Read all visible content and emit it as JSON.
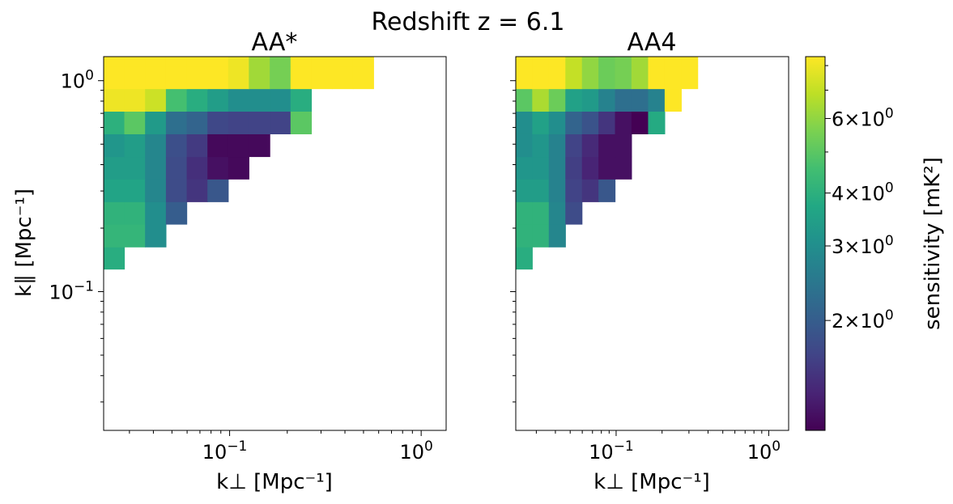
{
  "figure": {
    "suptitle": "Redshift z = 6.1",
    "colorbar": {
      "label": "sensitivity [mK²]",
      "scale": "log",
      "range": [
        1.1,
        8.4
      ],
      "colormap": "viridis",
      "ticks": [
        {
          "value": 6,
          "mant": "6",
          "exp": "0"
        },
        {
          "value": 4,
          "mant": "4",
          "exp": "0"
        },
        {
          "value": 3,
          "mant": "3",
          "exp": "0"
        },
        {
          "value": 2,
          "mant": "2",
          "exp": "0"
        }
      ]
    }
  },
  "chart_data": [
    {
      "type": "heatmap",
      "title": "AA*",
      "xlabel": "k⊥ [Mpc⁻¹]",
      "ylabel": "k∥ [Mpc⁻¹]",
      "xscale": "log",
      "yscale": "log",
      "xlim": [
        0.022,
        1.35
      ],
      "ylim": [
        0.022,
        1.3
      ],
      "xticks": [
        {
          "value": 0.1,
          "label": "10",
          "exp": "−1"
        },
        {
          "value": 1,
          "label": "10",
          "exp": "0"
        }
      ],
      "yticks": [
        {
          "value": 0.1,
          "label": "10",
          "exp": "−1"
        },
        {
          "value": 1,
          "label": "10",
          "exp": "0"
        }
      ],
      "x_edges": [
        0.022,
        0.0282,
        0.0362,
        0.0465,
        0.0597,
        0.0766,
        0.0983,
        0.126,
        0.162,
        0.208,
        0.267,
        0.342,
        0.44,
        0.564
      ],
      "y_edges": [
        0.128,
        0.163,
        0.209,
        0.267,
        0.342,
        0.437,
        0.56,
        0.717,
        0.917,
        1.174,
        1.3
      ],
      "values": [
        [
          3.9,
          null,
          null,
          null,
          null,
          null,
          null,
          null,
          null,
          null,
          null,
          null,
          null
        ],
        [
          4.2,
          4.2,
          3.0,
          null,
          null,
          null,
          null,
          null,
          null,
          null,
          null,
          null,
          null
        ],
        [
          4.1,
          4.1,
          3.0,
          2.0,
          null,
          null,
          null,
          null,
          null,
          null,
          null,
          null,
          null
        ],
        [
          3.6,
          3.6,
          2.8,
          1.75,
          1.5,
          1.9,
          null,
          null,
          null,
          null,
          null,
          null,
          null
        ],
        [
          3.4,
          3.4,
          2.8,
          1.75,
          1.45,
          1.2,
          1.15,
          null,
          null,
          null,
          null,
          null,
          null
        ],
        [
          3.2,
          3.4,
          2.8,
          1.8,
          1.55,
          1.15,
          1.15,
          1.15,
          null,
          null,
          null,
          null,
          null
        ],
        [
          4.0,
          5.0,
          3.3,
          2.3,
          2.1,
          1.7,
          1.65,
          1.65,
          1.65,
          5.0,
          null,
          null,
          null
        ],
        [
          8.0,
          8.0,
          7.2,
          4.6,
          3.9,
          3.4,
          3.0,
          3.0,
          3.0,
          3.9,
          null,
          null,
          null
        ],
        [
          8.4,
          8.4,
          8.4,
          8.4,
          8.4,
          8.4,
          8.0,
          6.3,
          5.5,
          8.4,
          8.4,
          8.4,
          8.4
        ],
        [
          8.4,
          8.4,
          8.4,
          8.4,
          8.4,
          8.4,
          8.0,
          6.3,
          5.5,
          8.4,
          8.4,
          8.4,
          8.4
        ]
      ]
    },
    {
      "type": "heatmap",
      "title": "AA4",
      "xlabel": "k⊥ [Mpc⁻¹]",
      "ylabel": "",
      "xscale": "log",
      "yscale": "log",
      "xlim": [
        0.022,
        1.35
      ],
      "ylim": [
        0.022,
        1.3
      ],
      "xticks": [
        {
          "value": 0.1,
          "label": "10",
          "exp": "−1"
        },
        {
          "value": 1,
          "label": "10",
          "exp": "0"
        }
      ],
      "yticks": [],
      "x_edges": [
        0.022,
        0.0282,
        0.0362,
        0.0465,
        0.0597,
        0.0766,
        0.0983,
        0.126,
        0.162,
        0.208,
        0.267,
        0.342,
        0.44,
        0.564
      ],
      "y_edges": [
        0.128,
        0.163,
        0.209,
        0.267,
        0.342,
        0.437,
        0.56,
        0.717,
        0.917,
        1.174,
        1.3
      ],
      "values": [
        [
          3.9,
          null,
          null,
          null,
          null,
          null,
          null,
          null,
          null,
          null,
          null,
          null,
          null
        ],
        [
          4.1,
          4.1,
          2.8,
          null,
          null,
          null,
          null,
          null,
          null,
          null,
          null,
          null,
          null
        ],
        [
          4.1,
          4.1,
          2.8,
          1.75,
          null,
          null,
          null,
          null,
          null,
          null,
          null,
          null,
          null
        ],
        [
          3.4,
          3.4,
          2.7,
          1.65,
          1.5,
          1.9,
          null,
          null,
          null,
          null,
          null,
          null,
          null
        ],
        [
          3.2,
          3.2,
          2.7,
          1.6,
          1.35,
          1.2,
          1.2,
          null,
          null,
          null,
          null,
          null,
          null
        ],
        [
          3.0,
          3.2,
          2.7,
          1.65,
          1.4,
          1.2,
          1.2,
          null,
          null,
          null,
          null,
          null,
          null
        ],
        [
          3.0,
          3.5,
          3.0,
          2.1,
          1.85,
          1.5,
          1.2,
          1.1,
          3.8,
          null,
          null,
          null,
          null
        ],
        [
          5.0,
          6.5,
          5.3,
          3.5,
          3.3,
          2.7,
          2.3,
          2.3,
          2.7,
          8.4,
          null,
          null,
          null
        ],
        [
          8.4,
          8.4,
          8.4,
          7.0,
          6.0,
          5.3,
          5.5,
          6.3,
          8.4,
          8.4,
          8.4,
          null,
          null
        ],
        [
          8.4,
          8.4,
          8.4,
          7.0,
          6.0,
          5.3,
          5.5,
          6.3,
          8.4,
          8.4,
          8.4,
          null,
          null
        ]
      ]
    }
  ]
}
